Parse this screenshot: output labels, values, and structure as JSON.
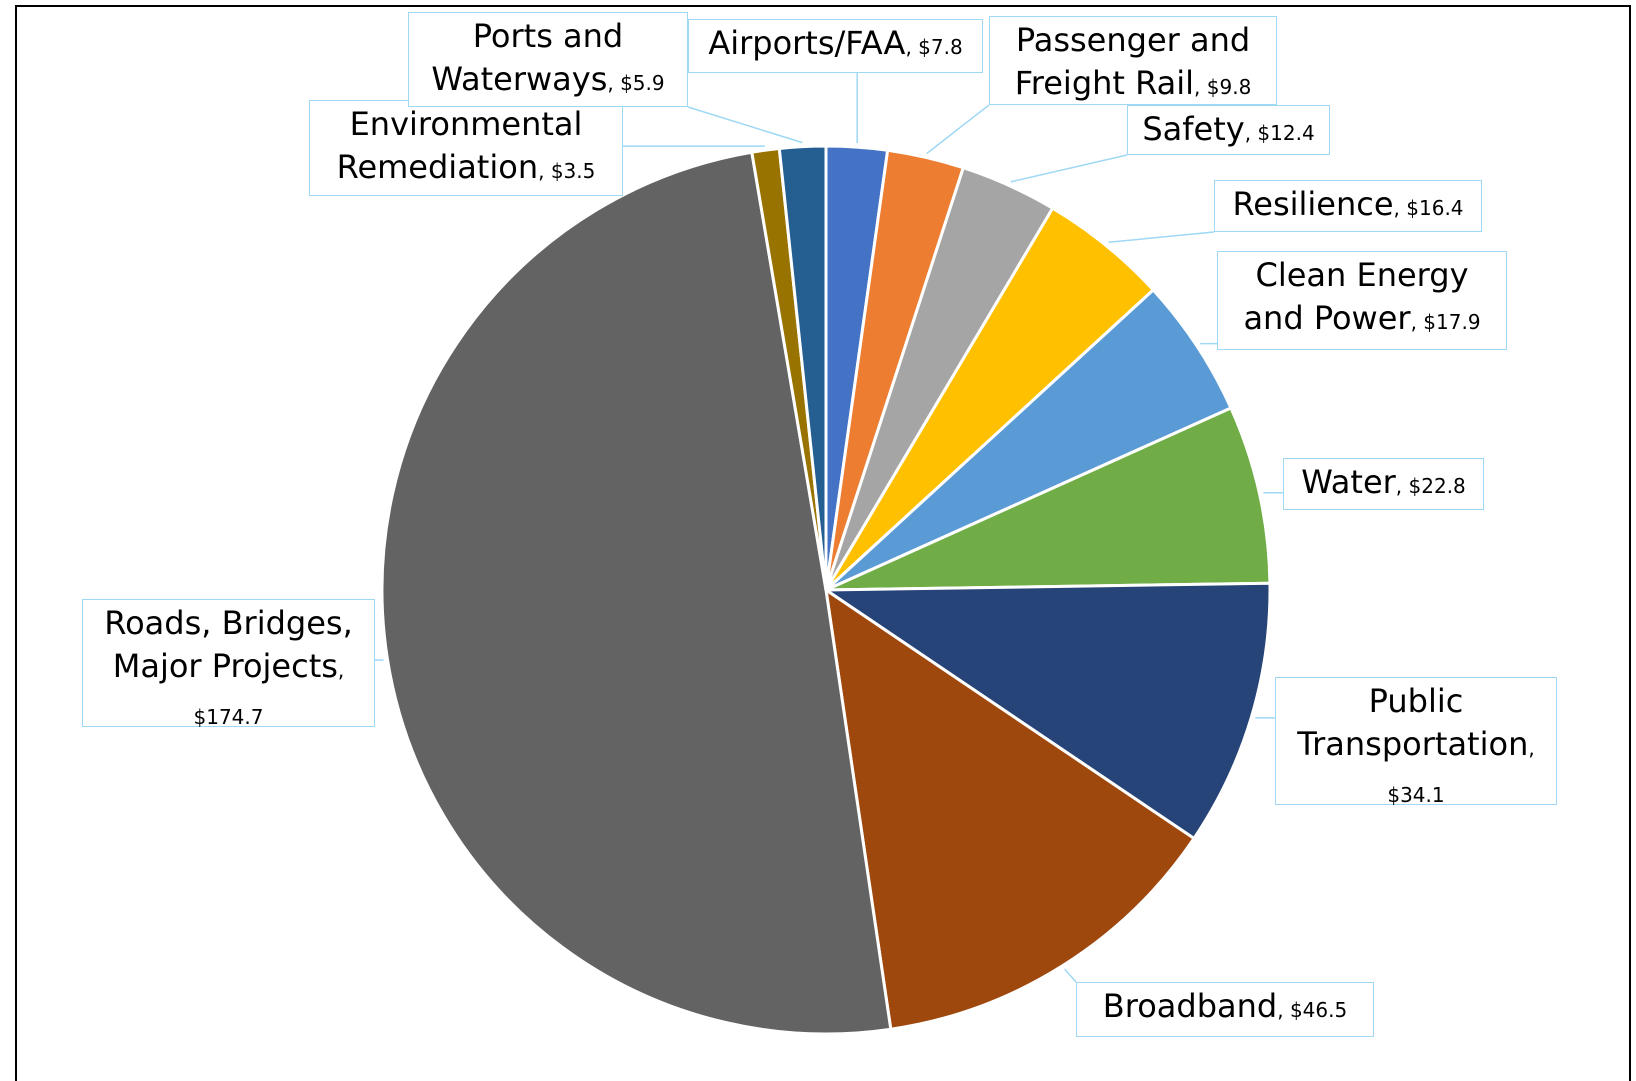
{
  "chart_data": {
    "type": "pie",
    "categories": [
      "Airports/FAA",
      "Passenger and Freight Rail",
      "Safety",
      "Resilience",
      "Clean Energy and Power",
      "Water",
      "Public Transportation",
      "Broadband",
      "Roads, Bridges, Major Projects",
      "Environmental Remediation",
      "Ports and Waterways"
    ],
    "values": [
      7.8,
      9.8,
      12.4,
      16.4,
      17.9,
      22.8,
      34.1,
      46.5,
      174.7,
      3.5,
      5.9
    ],
    "value_labels": [
      "$7.8",
      "$9.8",
      "$12.4",
      "$16.4",
      "$17.9",
      "$22.8",
      "$34.1",
      "$46.5",
      "$174.7",
      "$3.5",
      "$5.9"
    ],
    "label_separator": ", ",
    "colors": [
      "#4472c4",
      "#ed7d31",
      "#a5a5a5",
      "#ffc000",
      "#5b9bd5",
      "#70ad47",
      "#264478",
      "#9e480e",
      "#636363",
      "#997300",
      "#255e91"
    ]
  }
}
